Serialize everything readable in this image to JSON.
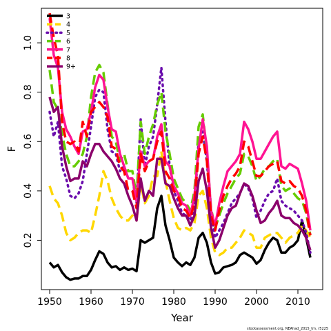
{
  "chart_data": {
    "type": "line",
    "title": "",
    "xlabel": "Year",
    "ylabel": "F",
    "xlim": [
      1948,
      2016
    ],
    "ylim": [
      0.0,
      1.14
    ],
    "x_ticks": [
      1950,
      1960,
      1970,
      1980,
      1990,
      2000,
      2010
    ],
    "y_ticks": [
      0.2,
      0.4,
      0.6,
      0.8,
      1.0
    ],
    "x_tick_labels": [
      "1950",
      "1960",
      "1970",
      "1980",
      "1990",
      "2000",
      "2010"
    ],
    "y_tick_labels": [
      "0.2",
      "0.4",
      "0.6",
      "0.8",
      "1.0"
    ],
    "grid": false,
    "legend_position": "top-left",
    "credit": "stockassessment.org, NEAhad_2015_tm, r5225",
    "x": [
      1950,
      1951,
      1952,
      1953,
      1954,
      1955,
      1956,
      1957,
      1958,
      1959,
      1960,
      1961,
      1962,
      1963,
      1964,
      1965,
      1966,
      1967,
      1968,
      1969,
      1970,
      1971,
      1972,
      1973,
      1974,
      1975,
      1976,
      1977,
      1978,
      1979,
      1980,
      1981,
      1982,
      1983,
      1984,
      1985,
      1986,
      1987,
      1988,
      1989,
      1990,
      1991,
      1992,
      1993,
      1994,
      1995,
      1996,
      1997,
      1998,
      1999,
      2000,
      2001,
      2002,
      2003,
      2004,
      2005,
      2006,
      2007,
      2008,
      2009,
      2010,
      2011,
      2012,
      2013
    ],
    "series": [
      {
        "name": "3",
        "color": "#000000",
        "dash": "solid",
        "values": [
          0.11,
          0.09,
          0.1,
          0.07,
          0.05,
          0.04,
          0.045,
          0.045,
          0.055,
          0.055,
          0.08,
          0.12,
          0.155,
          0.145,
          0.11,
          0.09,
          0.095,
          0.08,
          0.09,
          0.08,
          0.085,
          0.075,
          0.2,
          0.19,
          0.2,
          0.21,
          0.33,
          0.38,
          0.26,
          0.2,
          0.13,
          0.11,
          0.095,
          0.11,
          0.1,
          0.13,
          0.21,
          0.23,
          0.19,
          0.11,
          0.065,
          0.07,
          0.09,
          0.095,
          0.1,
          0.11,
          0.14,
          0.15,
          0.14,
          0.13,
          0.105,
          0.12,
          0.16,
          0.19,
          0.21,
          0.2,
          0.15,
          0.15,
          0.17,
          0.18,
          0.2,
          0.28,
          0.21,
          0.13
        ]
      },
      {
        "name": "4",
        "color": "#ffd700",
        "dash": "dashed",
        "values": [
          0.42,
          0.37,
          0.35,
          0.3,
          0.23,
          0.2,
          0.21,
          0.23,
          0.24,
          0.24,
          0.23,
          0.3,
          0.38,
          0.48,
          0.44,
          0.37,
          0.33,
          0.3,
          0.28,
          0.28,
          0.3,
          0.28,
          0.43,
          0.35,
          0.38,
          0.46,
          0.46,
          0.56,
          0.44,
          0.36,
          0.29,
          0.25,
          0.24,
          0.25,
          0.24,
          0.27,
          0.38,
          0.4,
          0.33,
          0.21,
          0.15,
          0.14,
          0.15,
          0.17,
          0.17,
          0.19,
          0.21,
          0.24,
          0.23,
          0.22,
          0.17,
          0.17,
          0.21,
          0.22,
          0.23,
          0.23,
          0.21,
          0.19,
          0.21,
          0.22,
          0.23,
          0.26,
          0.24,
          0.21
        ]
      },
      {
        "name": "5",
        "color": "#6a0dad",
        "dash": "dotted",
        "values": [
          0.72,
          0.62,
          0.68,
          0.5,
          0.45,
          0.38,
          0.37,
          0.39,
          0.44,
          0.55,
          0.66,
          0.78,
          0.81,
          0.8,
          0.65,
          0.56,
          0.55,
          0.48,
          0.5,
          0.45,
          0.45,
          0.35,
          0.69,
          0.5,
          0.58,
          0.62,
          0.75,
          0.9,
          0.68,
          0.5,
          0.4,
          0.36,
          0.31,
          0.3,
          0.28,
          0.33,
          0.6,
          0.64,
          0.52,
          0.31,
          0.21,
          0.24,
          0.27,
          0.31,
          0.35,
          0.37,
          0.39,
          0.43,
          0.41,
          0.37,
          0.29,
          0.32,
          0.36,
          0.39,
          0.4,
          0.45,
          0.36,
          0.34,
          0.33,
          0.32,
          0.3,
          0.28,
          0.23,
          0.15
        ]
      },
      {
        "name": "6",
        "color": "#66cc00",
        "dash": "dashed",
        "values": [
          0.89,
          0.76,
          0.73,
          0.63,
          0.55,
          0.5,
          0.5,
          0.52,
          0.55,
          0.62,
          0.78,
          0.88,
          0.91,
          0.88,
          0.75,
          0.62,
          0.6,
          0.52,
          0.55,
          0.48,
          0.48,
          0.38,
          0.68,
          0.55,
          0.62,
          0.67,
          0.75,
          0.8,
          0.64,
          0.55,
          0.45,
          0.41,
          0.37,
          0.35,
          0.32,
          0.4,
          0.66,
          0.71,
          0.56,
          0.33,
          0.25,
          0.3,
          0.35,
          0.39,
          0.42,
          0.45,
          0.47,
          0.55,
          0.54,
          0.5,
          0.44,
          0.46,
          0.49,
          0.5,
          0.52,
          0.53,
          0.42,
          0.4,
          0.41,
          0.39,
          0.37,
          0.36,
          0.31,
          0.22
        ]
      },
      {
        "name": "7",
        "color": "#ff1493",
        "dash": "solid",
        "values": [
          1.1,
          0.95,
          0.9,
          0.72,
          0.65,
          0.62,
          0.58,
          0.55,
          0.64,
          0.65,
          0.72,
          0.82,
          0.87,
          0.85,
          0.74,
          0.65,
          0.64,
          0.55,
          0.5,
          0.45,
          0.45,
          0.36,
          0.56,
          0.5,
          0.52,
          0.53,
          0.62,
          0.67,
          0.52,
          0.5,
          0.42,
          0.39,
          0.35,
          0.34,
          0.3,
          0.38,
          0.57,
          0.69,
          0.58,
          0.32,
          0.26,
          0.35,
          0.42,
          0.48,
          0.5,
          0.52,
          0.55,
          0.68,
          0.65,
          0.6,
          0.53,
          0.53,
          0.56,
          0.59,
          0.62,
          0.64,
          0.5,
          0.49,
          0.51,
          0.5,
          0.49,
          0.43,
          0.36,
          0.24
        ]
      },
      {
        "name": "8",
        "color": "#ff0000",
        "dash": "dashed",
        "values": [
          1.12,
          1.02,
          0.95,
          0.68,
          0.6,
          0.59,
          0.6,
          0.56,
          0.68,
          0.62,
          0.72,
          0.74,
          0.76,
          0.74,
          0.7,
          0.58,
          0.57,
          0.5,
          0.48,
          0.4,
          0.4,
          0.33,
          0.55,
          0.48,
          0.52,
          0.53,
          0.6,
          0.64,
          0.48,
          0.45,
          0.4,
          0.38,
          0.33,
          0.32,
          0.29,
          0.35,
          0.55,
          0.62,
          0.52,
          0.3,
          0.24,
          0.32,
          0.38,
          0.42,
          0.45,
          0.47,
          0.5,
          0.6,
          0.58,
          0.52,
          0.46,
          0.46,
          0.48,
          0.5,
          0.51,
          0.52,
          0.44,
          0.43,
          0.44,
          0.42,
          0.41,
          0.38,
          0.32,
          0.22
        ]
      },
      {
        "name": "9+",
        "color": "#8b006b",
        "dash": "solid",
        "values": [
          0.78,
          0.72,
          0.74,
          0.58,
          0.5,
          0.44,
          0.45,
          0.45,
          0.52,
          0.5,
          0.55,
          0.59,
          0.59,
          0.56,
          0.54,
          0.52,
          0.49,
          0.45,
          0.43,
          0.38,
          0.34,
          0.28,
          0.45,
          0.36,
          0.4,
          0.38,
          0.53,
          0.53,
          0.43,
          0.42,
          0.37,
          0.33,
          0.3,
          0.3,
          0.26,
          0.3,
          0.44,
          0.49,
          0.4,
          0.25,
          0.17,
          0.2,
          0.25,
          0.3,
          0.33,
          0.34,
          0.39,
          0.43,
          0.42,
          0.38,
          0.32,
          0.27,
          0.28,
          0.31,
          0.33,
          0.36,
          0.3,
          0.29,
          0.29,
          0.27,
          0.26,
          0.24,
          0.21,
          0.16
        ]
      }
    ]
  }
}
